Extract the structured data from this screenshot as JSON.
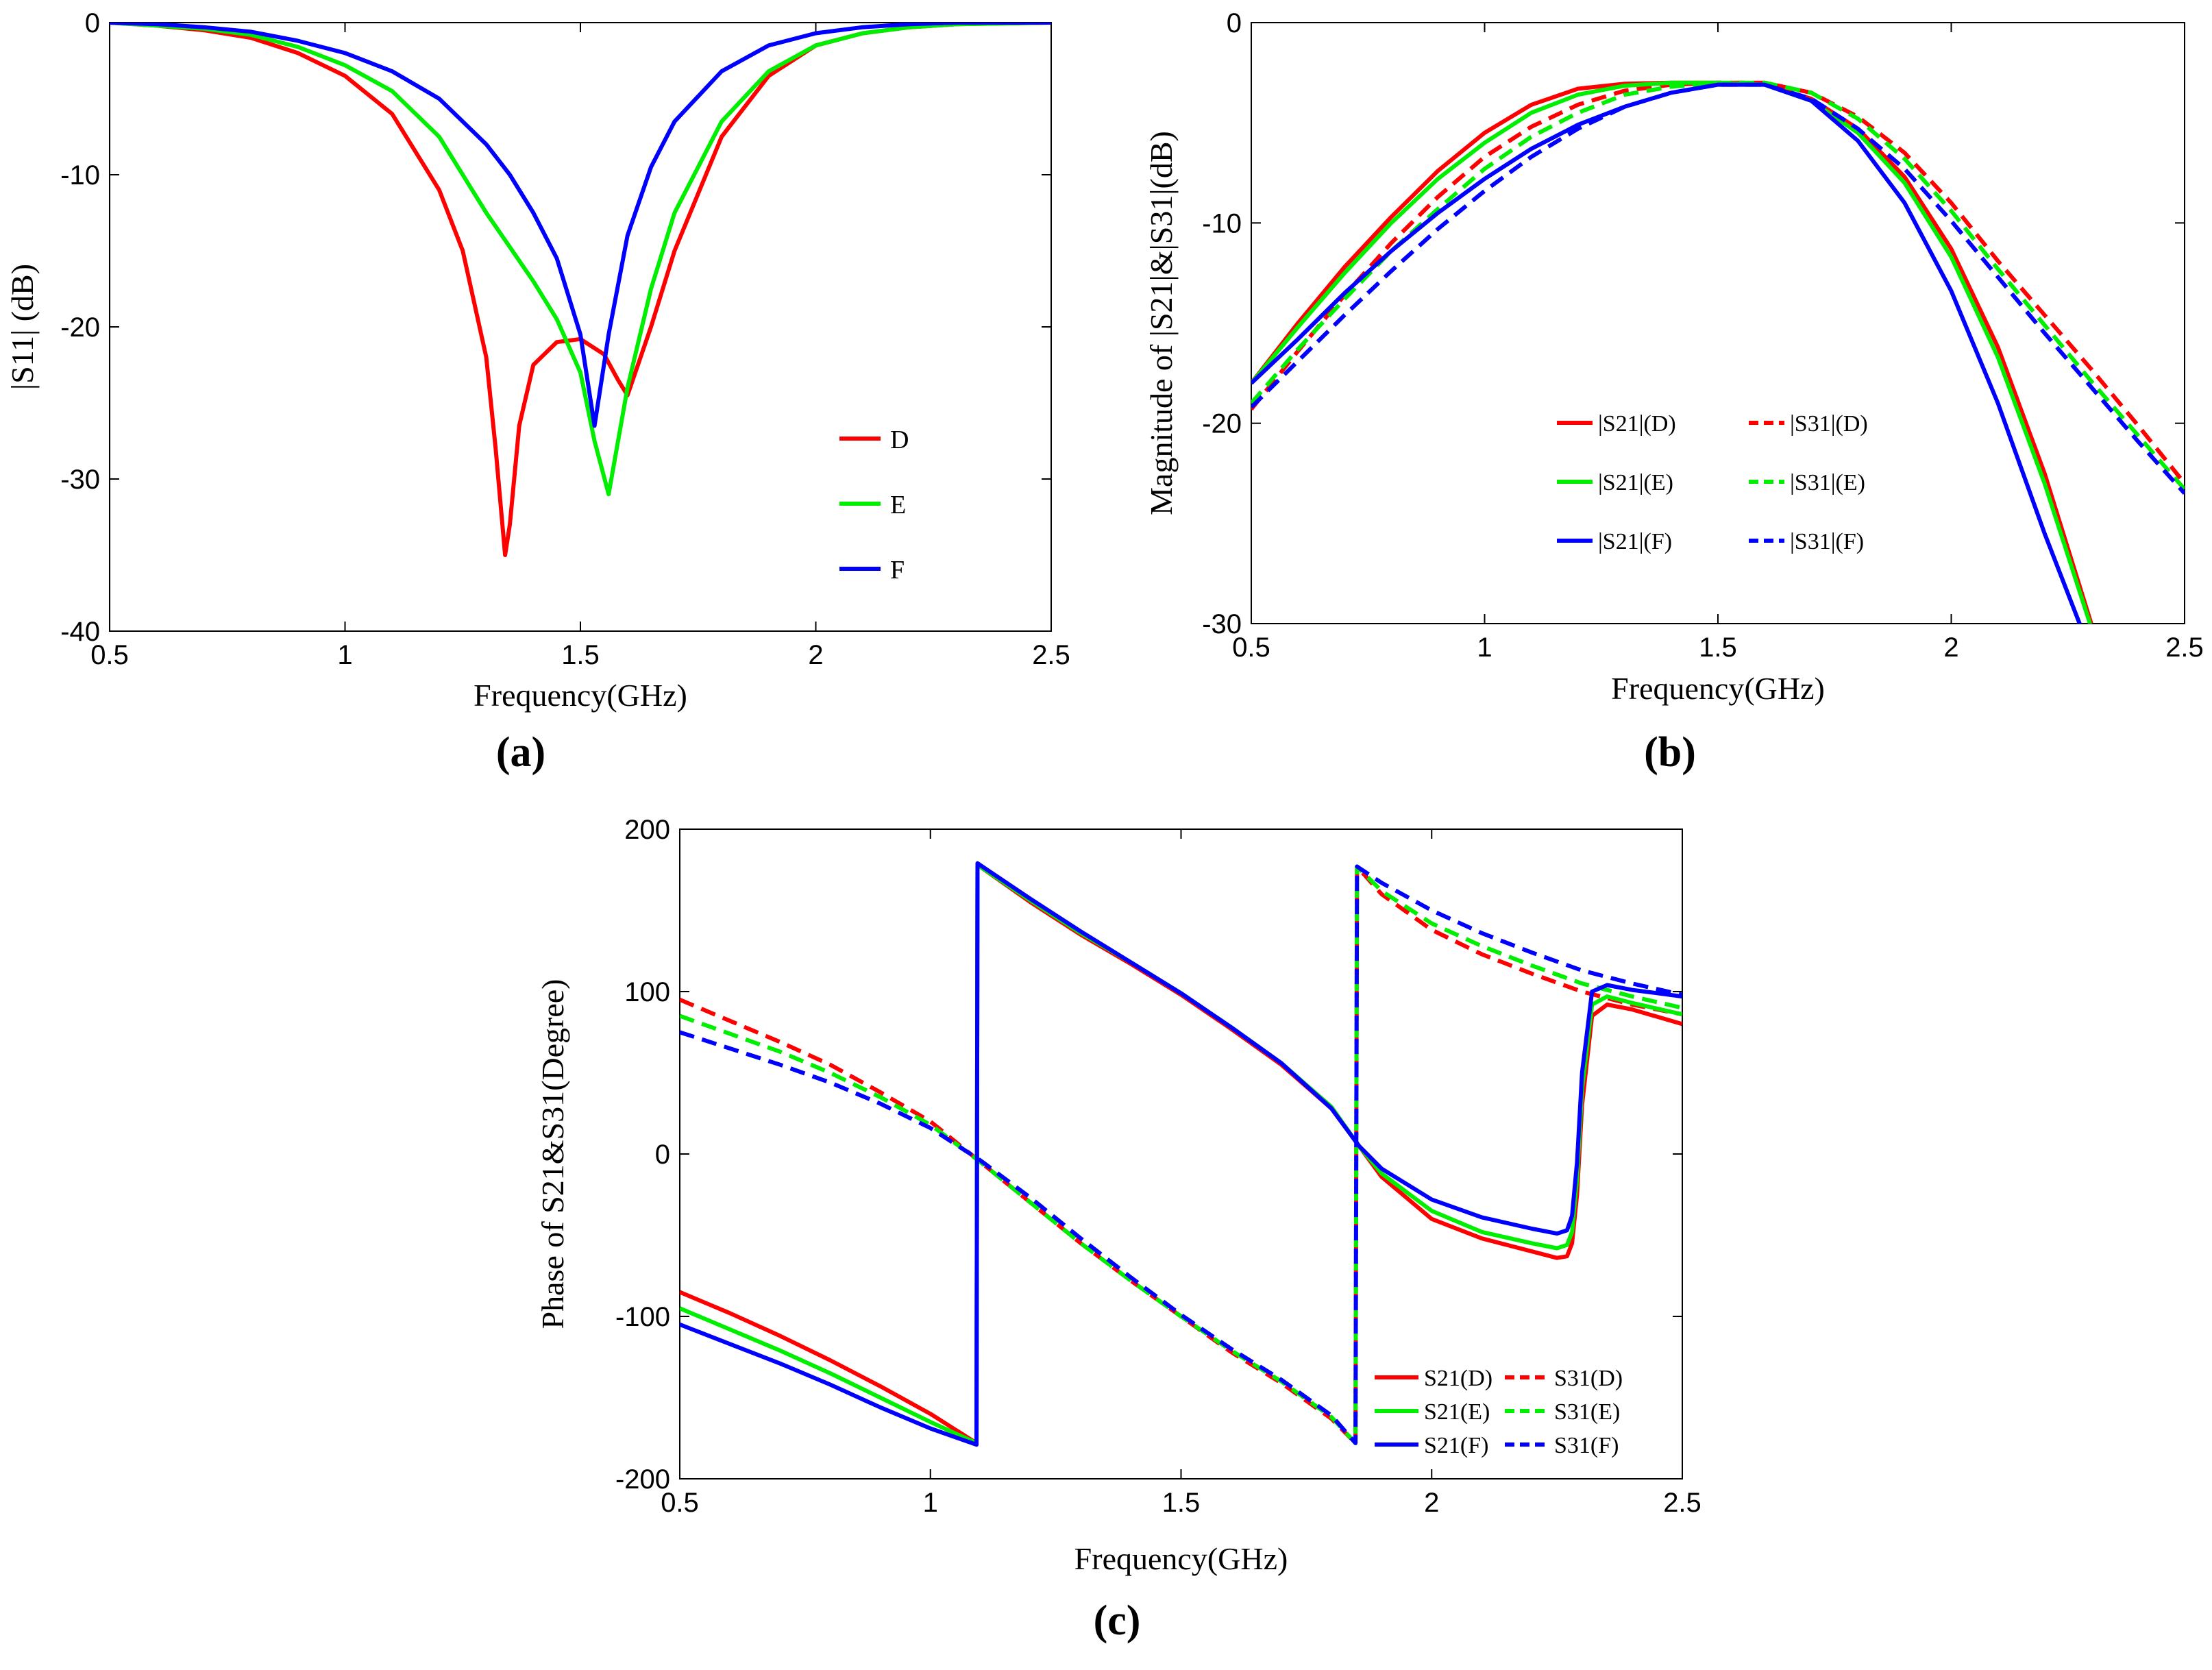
{
  "chart_data": [
    {
      "id": "a",
      "type": "line",
      "panel_label": "(a)",
      "xlabel": "Frequency(GHz)",
      "ylabel": "|S11| (dB)",
      "xlim": [
        0.5,
        2.5
      ],
      "ylim": [
        -40,
        0
      ],
      "xticks": [
        0.5,
        1,
        1.5,
        2,
        2.5
      ],
      "yticks": [
        0,
        -10,
        -20,
        -30,
        -40
      ],
      "xtick_labels": [
        "0.5",
        "1",
        "1.5",
        "2",
        "2.5"
      ],
      "ytick_labels": [
        "0",
        "-10",
        "-20",
        "-30",
        "-40"
      ],
      "legend_position": "right",
      "series": [
        {
          "name": "D",
          "color": "#ff0000",
          "dash": "solid",
          "x": [
            0.5,
            0.6,
            0.7,
            0.8,
            0.9,
            1.0,
            1.1,
            1.2,
            1.25,
            1.3,
            1.32,
            1.34,
            1.35,
            1.37,
            1.4,
            1.45,
            1.5,
            1.55,
            1.58,
            1.6,
            1.65,
            1.7,
            1.8,
            1.9,
            2.0,
            2.1,
            2.2,
            2.3,
            2.5
          ],
          "y": [
            0,
            -0.2,
            -0.5,
            -1,
            -2,
            -3.5,
            -6,
            -11,
            -15,
            -22,
            -28,
            -35,
            -33,
            -26.5,
            -22.5,
            -21,
            -20.8,
            -21.8,
            -23.5,
            -24.5,
            -20,
            -15,
            -7.5,
            -3.5,
            -1.5,
            -0.7,
            -0.3,
            -0.1,
            0
          ]
        },
        {
          "name": "E",
          "color": "#00ee00",
          "dash": "solid",
          "x": [
            0.5,
            0.6,
            0.7,
            0.8,
            0.9,
            1.0,
            1.1,
            1.2,
            1.3,
            1.4,
            1.45,
            1.5,
            1.53,
            1.56,
            1.6,
            1.65,
            1.7,
            1.8,
            1.9,
            2.0,
            2.1,
            2.2,
            2.3,
            2.5
          ],
          "y": [
            0,
            -0.2,
            -0.4,
            -0.8,
            -1.6,
            -2.8,
            -4.5,
            -7.5,
            -12.5,
            -17,
            -19.5,
            -23,
            -27.5,
            -31,
            -24,
            -17.5,
            -12.5,
            -6.5,
            -3.2,
            -1.5,
            -0.7,
            -0.3,
            -0.1,
            0
          ]
        },
        {
          "name": "F",
          "color": "#0000ff",
          "dash": "solid",
          "x": [
            0.5,
            0.6,
            0.7,
            0.8,
            0.9,
            1.0,
            1.1,
            1.2,
            1.3,
            1.35,
            1.4,
            1.45,
            1.5,
            1.53,
            1.56,
            1.6,
            1.65,
            1.7,
            1.8,
            1.9,
            2.0,
            2.1,
            2.2,
            2.3,
            2.5
          ],
          "y": [
            0,
            -0.1,
            -0.3,
            -0.6,
            -1.2,
            -2,
            -3.2,
            -5,
            -8,
            -10,
            -12.5,
            -15.5,
            -20.5,
            -26.5,
            -20.5,
            -14,
            -9.5,
            -6.5,
            -3.2,
            -1.5,
            -0.7,
            -0.3,
            -0.1,
            0,
            0
          ]
        }
      ]
    },
    {
      "id": "b",
      "type": "line",
      "panel_label": "(b)",
      "xlabel": "Frequency(GHz)",
      "ylabel": "Magnitude of |S21|&|S31|(dB)",
      "xlim": [
        0.5,
        2.5
      ],
      "ylim": [
        -30,
        0
      ],
      "xticks": [
        0.5,
        1,
        1.5,
        2,
        2.5
      ],
      "yticks": [
        0,
        -10,
        -20,
        -30
      ],
      "xtick_labels": [
        "0.5",
        "1",
        "1.5",
        "2",
        "2.5"
      ],
      "ytick_labels": [
        "0",
        "-10",
        "-20",
        "-30"
      ],
      "legend_position": "bottom-center",
      "series": [
        {
          "name": "|S21|(D)",
          "color": "#ff0000",
          "dash": "solid",
          "x": [
            0.5,
            0.6,
            0.7,
            0.8,
            0.9,
            1.0,
            1.1,
            1.2,
            1.3,
            1.4,
            1.5,
            1.6,
            1.7,
            1.8,
            1.9,
            2.0,
            2.1,
            2.2,
            2.3
          ],
          "y": [
            -18,
            -15,
            -12.2,
            -9.7,
            -7.4,
            -5.5,
            -4.1,
            -3.3,
            -3.05,
            -3.0,
            -3.0,
            -3.1,
            -3.8,
            -5.3,
            -7.7,
            -11.3,
            -16.2,
            -22.5,
            -30
          ]
        },
        {
          "name": "|S31|(D)",
          "color": "#ff0000",
          "dash": "dashed",
          "x": [
            0.5,
            0.6,
            0.7,
            0.8,
            0.9,
            1.0,
            1.1,
            1.2,
            1.3,
            1.4,
            1.5,
            1.6,
            1.7,
            1.8,
            1.9,
            2.0,
            2.1,
            2.2,
            2.3,
            2.4,
            2.5
          ],
          "y": [
            -19.3,
            -16.4,
            -13.6,
            -11,
            -8.7,
            -6.7,
            -5.2,
            -4.1,
            -3.4,
            -3.1,
            -3.0,
            -3.0,
            -3.5,
            -4.7,
            -6.5,
            -9,
            -11.9,
            -14.6,
            -17.3,
            -20.1,
            -23
          ]
        },
        {
          "name": "|S21|(E)",
          "color": "#00ee00",
          "dash": "solid",
          "x": [
            0.5,
            0.6,
            0.7,
            0.8,
            0.9,
            1.0,
            1.1,
            1.2,
            1.3,
            1.4,
            1.5,
            1.6,
            1.7,
            1.8,
            1.9,
            2.0,
            2.1,
            2.2,
            2.3
          ],
          "y": [
            -18,
            -15.2,
            -12.5,
            -10,
            -7.8,
            -6,
            -4.5,
            -3.6,
            -3.15,
            -3.0,
            -3.0,
            -3.1,
            -3.9,
            -5.5,
            -8,
            -11.7,
            -16.7,
            -23,
            -30.2
          ]
        },
        {
          "name": "|S31|(E)",
          "color": "#00ee00",
          "dash": "dashed",
          "x": [
            0.5,
            0.6,
            0.7,
            0.8,
            0.9,
            1.0,
            1.1,
            1.2,
            1.3,
            1.4,
            1.5,
            1.6,
            1.7,
            1.8,
            1.9,
            2.0,
            2.1,
            2.2,
            2.3,
            2.4,
            2.5
          ],
          "y": [
            -19,
            -16.3,
            -13.8,
            -11.4,
            -9.3,
            -7.3,
            -5.7,
            -4.5,
            -3.6,
            -3.2,
            -3.0,
            -3.0,
            -3.5,
            -4.8,
            -6.8,
            -9.4,
            -12.3,
            -15.1,
            -17.9,
            -20.6,
            -23.3
          ]
        },
        {
          "name": "|S21|(F)",
          "color": "#0000ff",
          "dash": "solid",
          "x": [
            0.5,
            0.6,
            0.7,
            0.8,
            0.9,
            1.0,
            1.1,
            1.2,
            1.3,
            1.4,
            1.5,
            1.6,
            1.7,
            1.8,
            1.9,
            2.0,
            2.1,
            2.2,
            2.28
          ],
          "y": [
            -18,
            -15.8,
            -13.5,
            -11.4,
            -9.5,
            -7.8,
            -6.3,
            -5.1,
            -4.2,
            -3.5,
            -3.1,
            -3.1,
            -3.9,
            -5.9,
            -9,
            -13.4,
            -19,
            -25.5,
            -30.3
          ]
        },
        {
          "name": "|S31|(F)",
          "color": "#0000ff",
          "dash": "dashed",
          "x": [
            0.5,
            0.6,
            0.7,
            0.8,
            0.9,
            1.0,
            1.1,
            1.2,
            1.3,
            1.4,
            1.5,
            1.6,
            1.7,
            1.8,
            1.9,
            2.0,
            2.1,
            2.2,
            2.3,
            2.4,
            2.5
          ],
          "y": [
            -19.2,
            -16.9,
            -14.6,
            -12.4,
            -10.3,
            -8.4,
            -6.7,
            -5.3,
            -4.2,
            -3.5,
            -3.1,
            -3.1,
            -3.8,
            -5.3,
            -7.3,
            -9.9,
            -12.7,
            -15.5,
            -18.2,
            -20.9,
            -23.5
          ]
        }
      ]
    },
    {
      "id": "c",
      "type": "line",
      "panel_label": "(c)",
      "xlabel": "Frequency(GHz)",
      "ylabel": "Phase of S21&S31(Degree)",
      "xlim": [
        0.5,
        2.5
      ],
      "ylim": [
        -200,
        200
      ],
      "xticks": [
        0.5,
        1,
        1.5,
        2,
        2.5
      ],
      "yticks": [
        200,
        100,
        0,
        -100,
        -200
      ],
      "xtick_labels": [
        "0.5",
        "1",
        "1.5",
        "2",
        "2.5"
      ],
      "ytick_labels": [
        "200",
        "100",
        "0",
        "-100",
        "-200"
      ],
      "legend_position": "bottom-right",
      "series": [
        {
          "name": "S21(D)",
          "color": "#ff0000",
          "dash": "solid",
          "x": [
            0.5,
            0.6,
            0.7,
            0.8,
            0.9,
            1.0,
            1.092,
            1.094,
            1.2,
            1.3,
            1.4,
            1.5,
            1.6,
            1.7,
            1.8,
            1.855,
            1.9,
            2.0,
            2.1,
            2.2,
            2.25,
            2.27,
            2.28,
            2.29,
            2.3,
            2.32,
            2.35,
            2.4,
            2.5
          ],
          "y": [
            -85,
            -98,
            -112,
            -127,
            -143,
            -160,
            -178,
            178,
            155,
            135,
            117,
            98,
            77,
            55,
            28,
            5,
            -14,
            -40,
            -52,
            -60,
            -64,
            -63,
            -55,
            -25,
            30,
            85,
            92,
            89,
            80
          ]
        },
        {
          "name": "S31(D)",
          "color": "#ff0000",
          "dash": "dashed",
          "x": [
            0.5,
            0.6,
            0.7,
            0.8,
            0.9,
            1.0,
            1.1,
            1.2,
            1.3,
            1.4,
            1.5,
            1.6,
            1.7,
            1.8,
            1.848,
            1.851,
            1.9,
            2.0,
            2.1,
            2.2,
            2.3,
            2.4,
            2.5
          ],
          "y": [
            95,
            82,
            69,
            55,
            38,
            20,
            -5,
            -30,
            -55,
            -78,
            -100,
            -122,
            -141,
            -163,
            -178,
            177,
            160,
            138,
            123,
            111,
            100,
            92,
            86
          ]
        },
        {
          "name": "S21(E)",
          "color": "#00ee00",
          "dash": "solid",
          "x": [
            0.5,
            0.6,
            0.7,
            0.8,
            0.9,
            1.0,
            1.092,
            1.094,
            1.2,
            1.3,
            1.4,
            1.5,
            1.6,
            1.7,
            1.8,
            1.855,
            1.9,
            2.0,
            2.1,
            2.2,
            2.25,
            2.27,
            2.28,
            2.29,
            2.3,
            2.32,
            2.35,
            2.4,
            2.5
          ],
          "y": [
            -95,
            -108,
            -121,
            -135,
            -150,
            -165,
            -178,
            178,
            156,
            136,
            118,
            99,
            78,
            56,
            29,
            5,
            -12,
            -35,
            -48,
            -55,
            -58,
            -56,
            -48,
            -15,
            40,
            92,
            97,
            93,
            86
          ]
        },
        {
          "name": "S31(E)",
          "color": "#00ee00",
          "dash": "dashed",
          "x": [
            0.5,
            0.6,
            0.7,
            0.8,
            0.9,
            1.0,
            1.1,
            1.2,
            1.3,
            1.4,
            1.5,
            1.6,
            1.7,
            1.8,
            1.848,
            1.851,
            1.9,
            2.0,
            2.1,
            2.2,
            2.3,
            2.4,
            2.5
          ],
          "y": [
            85,
            74,
            63,
            50,
            35,
            18,
            -5,
            -30,
            -55,
            -78,
            -100,
            -121,
            -140,
            -162,
            -178,
            177,
            162,
            142,
            128,
            116,
            105,
            97,
            90
          ]
        },
        {
          "name": "S21(F)",
          "color": "#0000ff",
          "dash": "solid",
          "x": [
            0.5,
            0.6,
            0.7,
            0.8,
            0.9,
            1.0,
            1.092,
            1.094,
            1.2,
            1.3,
            1.4,
            1.5,
            1.6,
            1.7,
            1.8,
            1.855,
            1.9,
            2.0,
            2.1,
            2.2,
            2.25,
            2.27,
            2.28,
            2.29,
            2.3,
            2.32,
            2.35,
            2.4,
            2.5
          ],
          "y": [
            -105,
            -117,
            -129,
            -142,
            -156,
            -169,
            -179,
            179,
            157,
            137,
            118,
            99,
            78,
            56,
            28,
            5,
            -9,
            -28,
            -39,
            -46,
            -49,
            -47,
            -38,
            -5,
            50,
            100,
            104,
            101,
            97
          ]
        },
        {
          "name": "S31(F)",
          "color": "#0000ff",
          "dash": "dashed",
          "x": [
            0.5,
            0.6,
            0.7,
            0.8,
            0.9,
            1.0,
            1.1,
            1.2,
            1.3,
            1.4,
            1.5,
            1.6,
            1.7,
            1.8,
            1.848,
            1.851,
            1.9,
            2.0,
            2.1,
            2.2,
            2.3,
            2.4,
            2.5
          ],
          "y": [
            75,
            65,
            55,
            44,
            31,
            16,
            -4,
            -27,
            -52,
            -76,
            -99,
            -120,
            -139,
            -161,
            -178,
            177,
            167,
            150,
            136,
            124,
            113,
            105,
            98
          ]
        }
      ]
    }
  ]
}
